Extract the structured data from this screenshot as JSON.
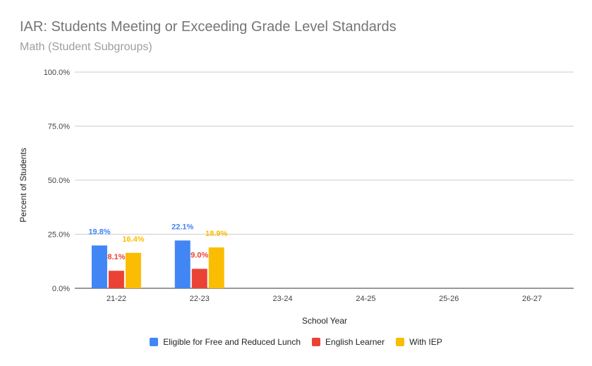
{
  "chart_data": {
    "type": "bar",
    "title": "IAR: Students Meeting or Exceeding Grade Level Standards",
    "subtitle": "Math (Student Subgroups)",
    "xlabel": "School Year",
    "ylabel": "Percent of Students",
    "categories": [
      "21-22",
      "22-23",
      "23-24",
      "24-25",
      "25-26",
      "26-27"
    ],
    "ylim": [
      0,
      100
    ],
    "yticks": [
      "0.0%",
      "25.0%",
      "50.0%",
      "75.0%",
      "100.0%"
    ],
    "grid": true,
    "legend_position": "bottom",
    "series": [
      {
        "name": "Eligible for Free and Reduced Lunch",
        "color": "#4285f4",
        "values": [
          19.8,
          22.1,
          null,
          null,
          null,
          null
        ],
        "labels": [
          "19.8%",
          "22.1%",
          "",
          "",
          "",
          ""
        ]
      },
      {
        "name": "English Learner",
        "color": "#ea4335",
        "values": [
          8.1,
          9.0,
          null,
          null,
          null,
          null
        ],
        "labels": [
          "8.1%",
          "9.0%",
          "",
          "",
          "",
          ""
        ]
      },
      {
        "name": "With IEP",
        "color": "#fbbc04",
        "values": [
          16.4,
          18.9,
          null,
          null,
          null,
          null
        ],
        "labels": [
          "16.4%",
          "18.9%",
          "",
          "",
          "",
          ""
        ]
      }
    ]
  }
}
